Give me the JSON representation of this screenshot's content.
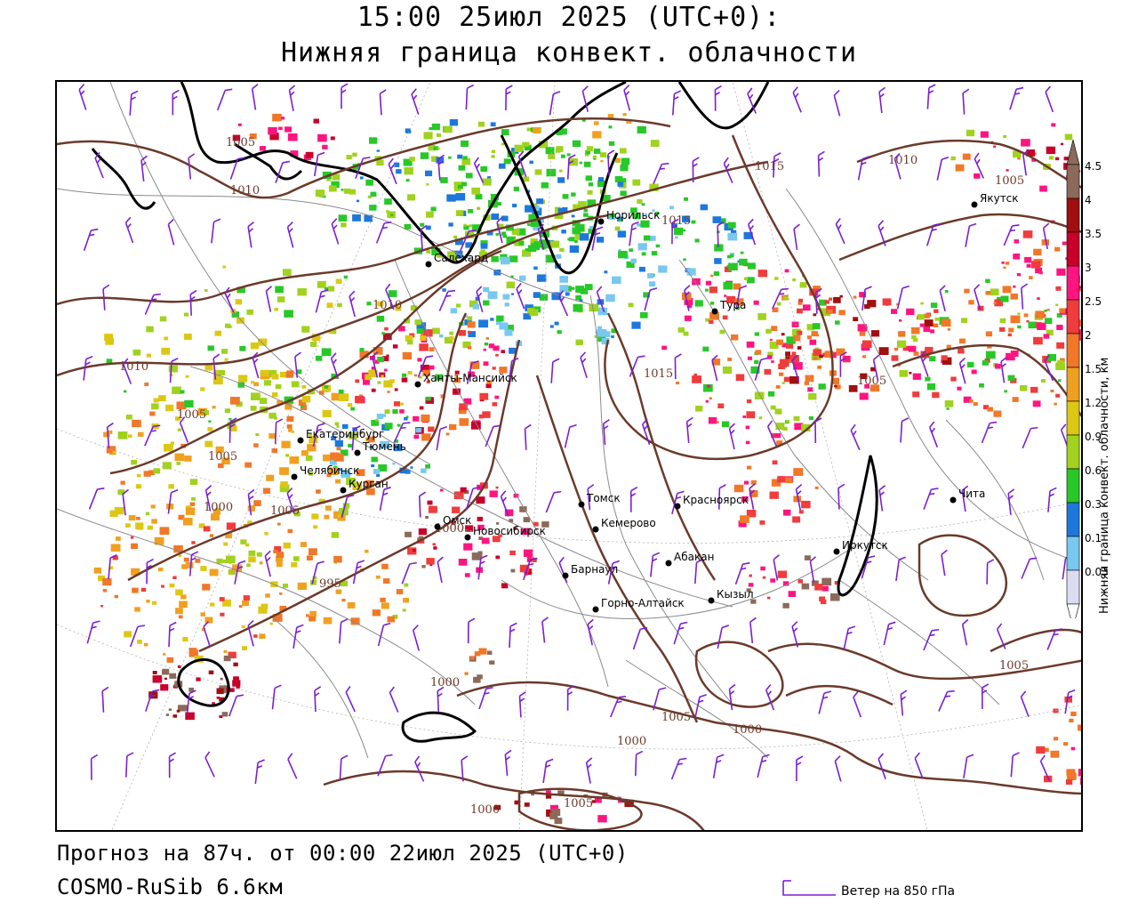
{
  "header": {
    "title_line1": "15:00 25июл 2025 (UTC+0):",
    "title_line2": "Нижняя граница конвект. облачности"
  },
  "footer": {
    "forecast_line": "Прогноз на 87ч. от 00:00 22июл 2025 (UTC+0)",
    "model_line": "COSMO-RuSib 6.6км",
    "wind_legend": "Ветер на 850 гПа"
  },
  "colorbar": {
    "title": "Нижняя граница конвект. облачности, км",
    "levels": [
      "4.5",
      "4",
      "3.5",
      "3",
      "2.5",
      "2",
      "1.5",
      "1.2",
      "0.9",
      "0.6",
      "0.3",
      "0.1",
      "0.03"
    ],
    "colors": [
      "#8b6a5a",
      "#a01010",
      "#c8002a",
      "#ff1480",
      "#f03c3c",
      "#f07828",
      "#f0a020",
      "#dcc814",
      "#a0d21e",
      "#28c828",
      "#1e78dc",
      "#78c8f0",
      "#dcdcf0"
    ]
  },
  "cities": [
    {
      "name": "Якутск"
    },
    {
      "name": "Норильск"
    },
    {
      "name": "Салехард"
    },
    {
      "name": "Тура"
    },
    {
      "name": "Ханты-Мансийск"
    },
    {
      "name": "Екатеринбург"
    },
    {
      "name": "Тюмень"
    },
    {
      "name": "Челябинск"
    },
    {
      "name": "Курган"
    },
    {
      "name": "Омск"
    },
    {
      "name": "Новосибирск"
    },
    {
      "name": "Томск"
    },
    {
      "name": "Красноярск"
    },
    {
      "name": "Кемерово"
    },
    {
      "name": "Абакан"
    },
    {
      "name": "Барнаул"
    },
    {
      "name": "Горно-Алтайск"
    },
    {
      "name": "Кызыл"
    },
    {
      "name": "Иркутск"
    },
    {
      "name": "Чита"
    }
  ],
  "isobar_labels": [
    "1005",
    "1010",
    "1015",
    "1015",
    "1010",
    "1005",
    "1010",
    "1015",
    "1010",
    "1005",
    "1005",
    "1005",
    "995",
    "1000",
    "1000",
    "1005",
    "1000",
    "1000",
    "1005",
    "1000",
    "1000",
    "1005",
    "1005"
  ],
  "colors": {
    "isobar": "#6b3a2a",
    "wind_barb": "#7a1fd0",
    "borders": "#888888",
    "coast": "#000000"
  }
}
